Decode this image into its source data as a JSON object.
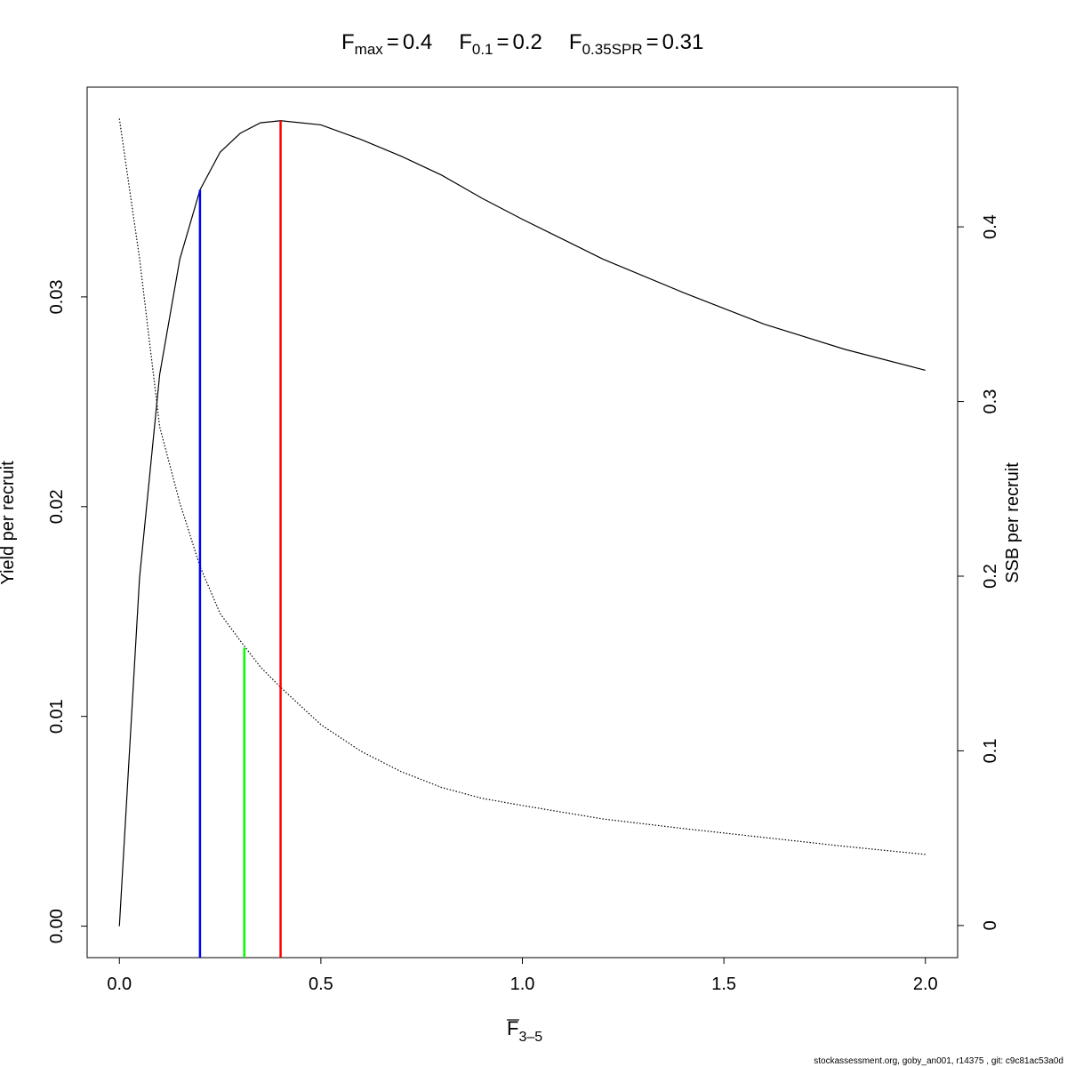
{
  "chart_data": {
    "type": "line",
    "relation": "=",
    "reference_points": [
      {
        "name_main": "F",
        "name_sub": "max",
        "value": 0.4,
        "color": "#ff0000",
        "top": 0.0384
      },
      {
        "name_main": "F",
        "name_sub": "0.1",
        "value": 0.2,
        "color": "#0000ff",
        "top": 0.0351
      },
      {
        "name_main": "F",
        "name_sub": "0.35SPR",
        "value": 0.31,
        "color": "#00ff00",
        "top": 0.159,
        "axis": "y2"
      }
    ],
    "x_label_main": "F",
    "x_label_sub": "3–5",
    "y_label": "Yield per recruit",
    "y2_label": "SSB per recruit",
    "footer": "stockassessment.org, goby_an001, r14375 , git: c9c81ac53a0d",
    "x": [
      0,
      0.05,
      0.1,
      0.15,
      0.2,
      0.25,
      0.3,
      0.35,
      0.4,
      0.5,
      0.6,
      0.7,
      0.8,
      0.9,
      1.0,
      1.2,
      1.4,
      1.6,
      1.8,
      2.0
    ],
    "series": [
      {
        "color": "#000000",
        "dotted": false,
        "values": [
          0,
          0.0166,
          0.0263,
          0.0318,
          0.0351,
          0.0369,
          0.0378,
          0.0383,
          0.0384,
          0.0382,
          0.0375,
          0.0367,
          0.0358,
          0.0347,
          0.0337,
          0.0318,
          0.0302,
          0.0287,
          0.0275,
          0.0265
        ]
      },
      {
        "color": "#000000",
        "dotted": true,
        "axis": "y2",
        "values": [
          0.462,
          0.382,
          0.2855,
          0.242,
          0.2056,
          0.1786,
          0.163,
          0.148,
          0.1364,
          0.115,
          0.0997,
          0.088,
          0.079,
          0.0728,
          0.0687,
          0.061,
          0.0555,
          0.0504,
          0.0453,
          0.0407
        ]
      }
    ],
    "xlim": [
      -0.08,
      2.08
    ],
    "xticks": [
      {
        "value": 0,
        "label": "0.0"
      },
      0.5,
      {
        "value": 1,
        "label": "1.0"
      },
      1.5,
      {
        "value": 2,
        "label": "2.0"
      }
    ],
    "ylim": [
      -0.0015,
      0.04
    ],
    "yticks": [
      {
        "value": 0,
        "label": "0.00"
      },
      0.01,
      0.02,
      0.03
    ],
    "y2lim": [
      -0.0184,
      0.48
    ],
    "y2ticks": [
      0,
      0.1,
      0.2,
      0.3,
      0.4
    ]
  }
}
